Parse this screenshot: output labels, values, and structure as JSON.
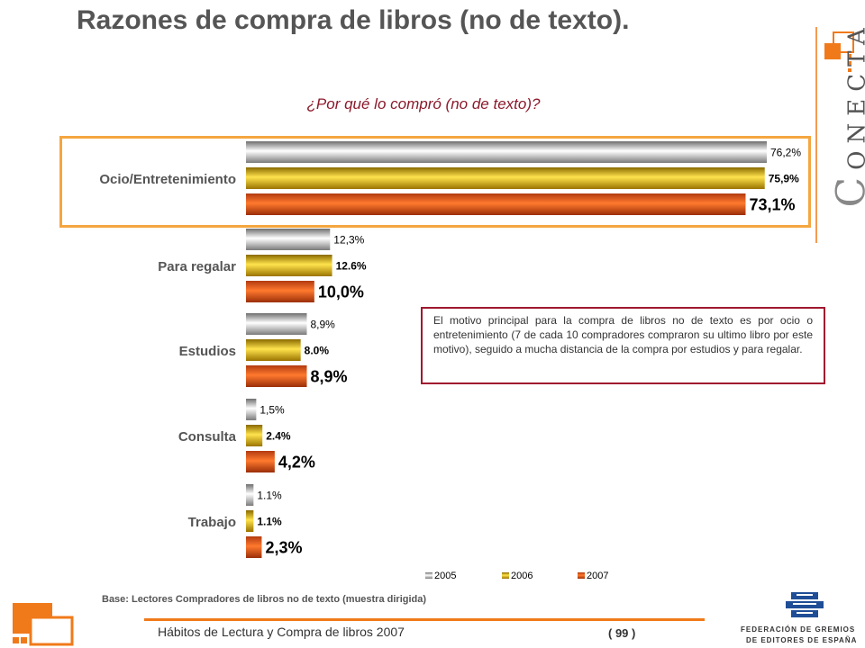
{
  "header": {
    "title": "Razones de compra de libros (no de texto).",
    "subtitle": "¿Por qué lo compró (no de texto)?"
  },
  "brand": {
    "initial": "C",
    "rest": "ONECTA"
  },
  "note": "El motivo principal para la compra de libros no de texto es por ocio o entretenimiento (7 de cada 10 compradores compraron su ultimo libro por este motivo), seguido a mucha distancia de la compra por estudios y para regalar.",
  "base": "Base: Lectores Compradores de libros no de texto (muestra dirigida)",
  "footer": {
    "text": "Hábitos de Lectura y Compra de libros 2007",
    "page": "( 99 )"
  },
  "federation": {
    "line1": "FEDERACIÓN DE GREMIOS",
    "line2": "DE EDITORES DE ESPAÑA"
  },
  "colors": {
    "s2005": "#bdbdbd",
    "s2006": "#e6b800",
    "s2007": "#e0521a",
    "highlight": "#f4a640",
    "note_border": "#a01830",
    "accent": "#f07a1a"
  },
  "chart_data": {
    "type": "bar",
    "orientation": "horizontal",
    "categories": [
      "Ocio/Entretenimiento",
      "Para regalar",
      "Estudios",
      "Consulta",
      "Trabajo"
    ],
    "series": [
      {
        "name": "2005",
        "values": [
          76.2,
          12.3,
          8.9,
          1.5,
          1.1
        ],
        "labels": [
          "76,2%",
          "12,3%",
          "8,9%",
          "1,5%",
          "1.1%"
        ]
      },
      {
        "name": "2006",
        "values": [
          75.9,
          12.6,
          8.0,
          2.4,
          1.1
        ],
        "labels": [
          "75,9%",
          "12.6%",
          "8.0%",
          "2.4%",
          "1.1%"
        ]
      },
      {
        "name": "2007",
        "values": [
          73.1,
          10.0,
          8.9,
          4.2,
          2.3
        ],
        "labels": [
          "73,1%",
          "10,0%",
          "8,9%",
          "4,2%",
          "2,3%"
        ]
      }
    ],
    "legend": "bottom",
    "grid": false
  }
}
